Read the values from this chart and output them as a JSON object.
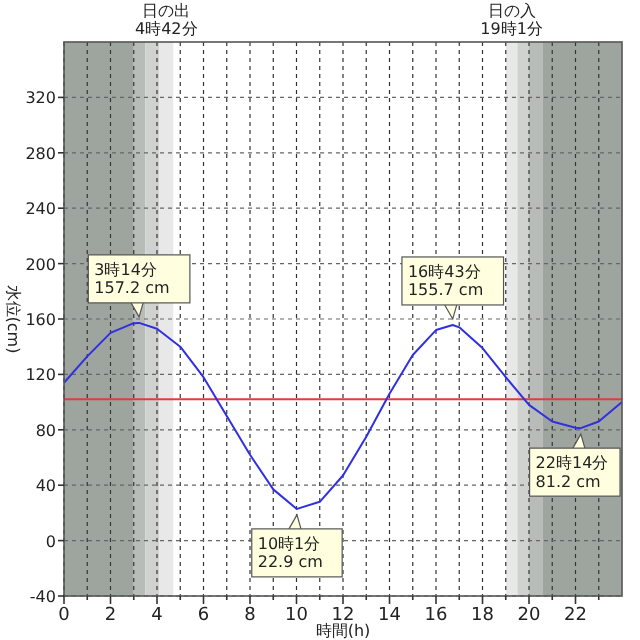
{
  "chart_data": {
    "type": "line",
    "xlabel": "時間(h)",
    "ylabel": "水位(cm)",
    "x": [
      0,
      1,
      2,
      3,
      3.23,
      4,
      5,
      6,
      7,
      8,
      9,
      10,
      10.02,
      11,
      12,
      13,
      14,
      15,
      16,
      16.72,
      17,
      18,
      19,
      20,
      21,
      22,
      22.23,
      23,
      24
    ],
    "series": [
      {
        "color": "#3030e0",
        "values": [
          114,
          133,
          150,
          157,
          157.2,
          153,
          140,
          118,
          90,
          62,
          37,
          23,
          22.9,
          28,
          47,
          75,
          106,
          134,
          152,
          155.7,
          154,
          139,
          118,
          98,
          86,
          81.5,
          81.2,
          86,
          100
        ]
      }
    ],
    "xlim": [
      0,
      24
    ],
    "ylim": [
      -40,
      360
    ],
    "xticks": [
      0,
      {
        "value": 1,
        "label": null
      },
      2,
      {
        "value": 3,
        "label": null
      },
      4,
      {
        "value": 5,
        "label": null
      },
      6,
      {
        "value": 7,
        "label": null
      },
      8,
      {
        "value": 9,
        "label": null
      },
      10,
      {
        "value": 11,
        "label": null
      },
      12,
      {
        "value": 13,
        "label": null
      },
      14,
      {
        "value": 15,
        "label": null
      },
      16,
      {
        "value": 17,
        "label": null
      },
      18,
      {
        "value": 19,
        "label": null
      },
      20,
      {
        "value": 21,
        "label": null
      },
      22,
      {
        "value": 23,
        "label": null
      }
    ],
    "yticks": [
      -40,
      0,
      40,
      80,
      120,
      160,
      200,
      240,
      280,
      320
    ],
    "grid": true,
    "marker": "none",
    "line_style": "solid",
    "ref_lines": [
      {
        "axis": "y",
        "value": 102,
        "color": "#e03c3c"
      }
    ],
    "bands": [
      {
        "axis": "x",
        "from": 0,
        "to": 3.0,
        "color": "#9ea59e"
      },
      {
        "axis": "x",
        "from": 3.0,
        "to": 3.5,
        "color": "#b8bcb8"
      },
      {
        "axis": "x",
        "from": 3.5,
        "to": 4.1,
        "color": "#d0d2d0"
      },
      {
        "axis": "x",
        "from": 4.1,
        "to": 4.7,
        "color": "#e8e8e8",
        "label": "日の出\n4時42分"
      },
      {
        "axis": "x",
        "from": 19.0,
        "to": 19.5,
        "color": "#e8e8e8",
        "label": "日の入\n19時1分"
      },
      {
        "axis": "x",
        "from": 19.5,
        "to": 20.0,
        "color": "#d0d2d0"
      },
      {
        "axis": "x",
        "from": 20.0,
        "to": 20.6,
        "color": "#b8bcb8"
      },
      {
        "axis": "x",
        "from": 20.6,
        "to": 24,
        "color": "#9ea59e"
      }
    ],
    "annotations": [
      {
        "text": "3時14分\n157.2 cm",
        "x": 3.23,
        "y": 157.2
      },
      {
        "text": "10時1分\n22.9 cm",
        "x": 10.02,
        "y": 22.9
      },
      {
        "text": "16時43分\n155.7 cm",
        "x": 16.72,
        "y": 155.7
      },
      {
        "text": "22時14分\n81.2 cm",
        "x": 22.23,
        "y": 81.2
      }
    ]
  }
}
